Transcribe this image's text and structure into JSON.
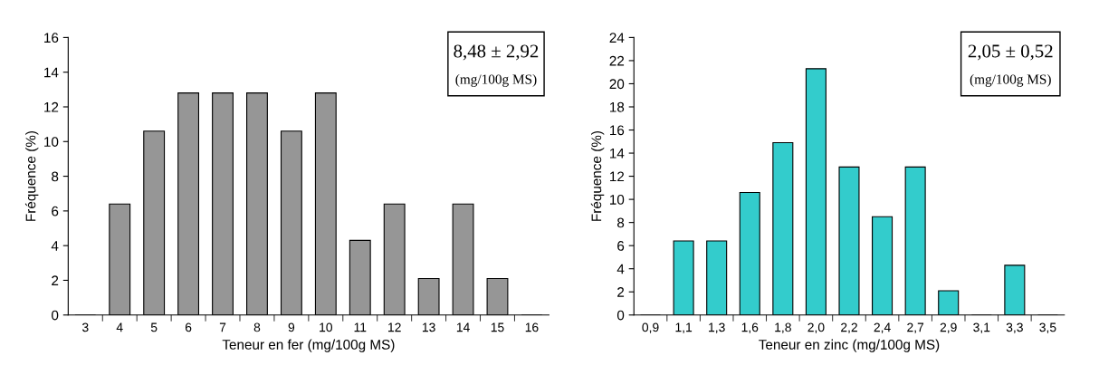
{
  "chart_data": [
    {
      "type": "bar",
      "xlabel": "Teneur en fer (mg/100g MS)",
      "ylabel": "Fréquence (%)",
      "categories": [
        "3",
        "4",
        "5",
        "6",
        "7",
        "8",
        "9",
        "10",
        "11",
        "12",
        "13",
        "14",
        "15",
        "16"
      ],
      "values": [
        0,
        6.4,
        10.6,
        12.8,
        12.8,
        12.8,
        10.6,
        12.8,
        4.3,
        6.4,
        2.1,
        6.4,
        2.1,
        0
      ],
      "color": "#969696",
      "ylim": [
        0,
        16
      ],
      "yticks": [
        0,
        2,
        4,
        6,
        8,
        10,
        12,
        14,
        16
      ],
      "grid": false,
      "legend": false,
      "annotations": [
        "8,48 ± 2,92",
        "(mg/100g MS)"
      ]
    },
    {
      "type": "bar",
      "xlabel": "Teneur en zinc (mg/100g MS)",
      "ylabel": "Fréquence (%)",
      "categories": [
        "0,9",
        "1,1",
        "1,3",
        "1,6",
        "1,8",
        "2,0",
        "2,2",
        "2,4",
        "2,7",
        "2,9",
        "3,1",
        "3,3",
        "3,5"
      ],
      "values": [
        0,
        6.4,
        6.4,
        10.6,
        14.9,
        21.3,
        12.8,
        8.5,
        12.8,
        2.1,
        0,
        4.3,
        0
      ],
      "color": "#33cccc",
      "ylim": [
        0,
        24
      ],
      "yticks": [
        0,
        2,
        4,
        6,
        8,
        10,
        12,
        14,
        16,
        18,
        20,
        22,
        24
      ],
      "grid": false,
      "legend": false,
      "annotations": [
        "2,05 ± 0,52",
        "(mg/100g MS)"
      ]
    }
  ]
}
